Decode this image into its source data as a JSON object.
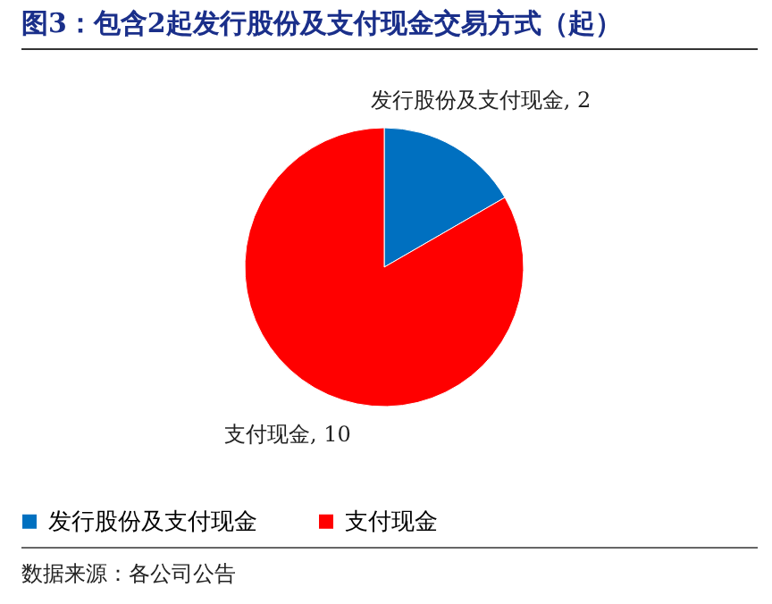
{
  "chart_data": {
    "type": "pie",
    "title": "图3：包含2起发行股份及支付现金交易方式（起）",
    "categories": [
      "发行股份及支付现金",
      "支付现金"
    ],
    "values": [
      2,
      10
    ],
    "colors": [
      "#0070c0",
      "#ff0000"
    ],
    "value_labels": [
      "发行股份及支付现金, 2",
      "支付现金, 10"
    ],
    "legend": "bottom",
    "annotations": [
      "数据来源：各公司公告"
    ]
  }
}
